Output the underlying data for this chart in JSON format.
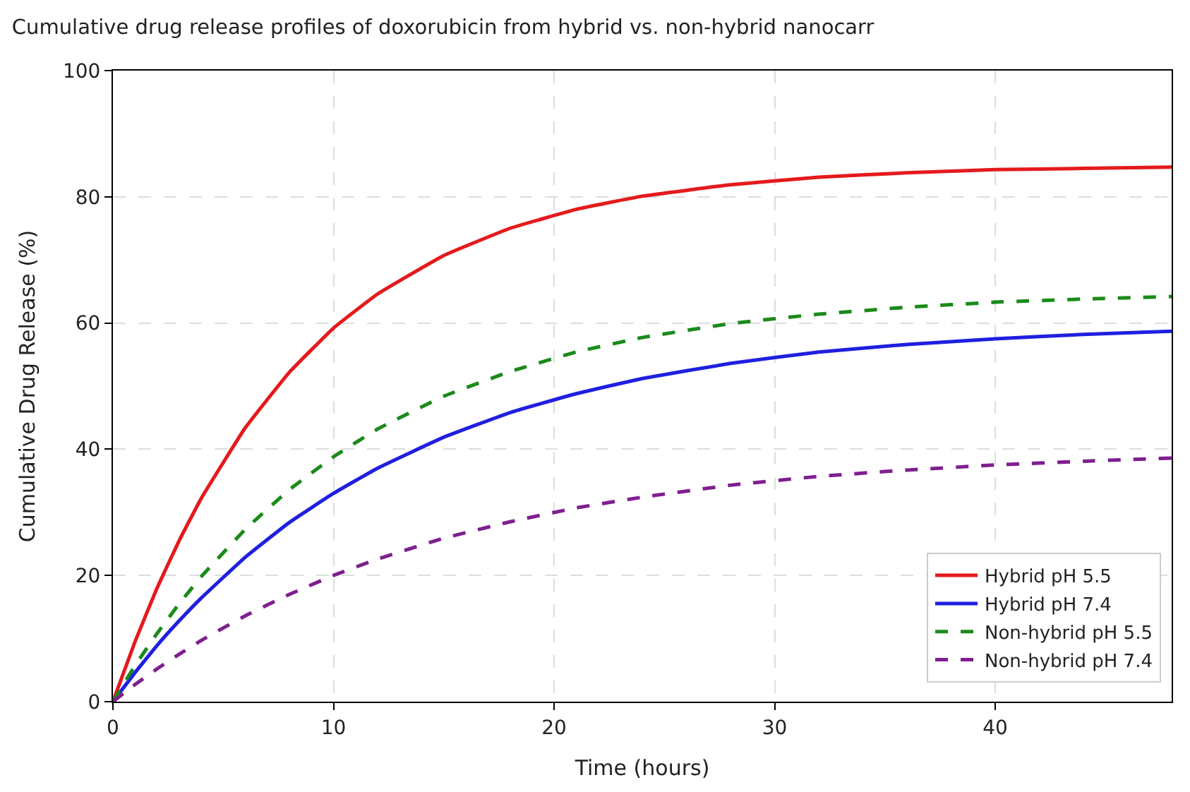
{
  "chart_data": {
    "type": "line",
    "title": "Cumulative drug release profiles of doxorubicin from hybrid vs. non-hybrid nanocarr",
    "xlabel": "Time (hours)",
    "ylabel": "Cumulative Drug Release (%)",
    "x": [
      0,
      1,
      2,
      3,
      4,
      6,
      8,
      10,
      12,
      15,
      18,
      21,
      24,
      28,
      32,
      36,
      40,
      44,
      48
    ],
    "xlim": [
      0,
      48
    ],
    "xticks": [
      0,
      10,
      20,
      30,
      40
    ],
    "ylim": [
      0,
      100
    ],
    "yticks": [
      0,
      20,
      40,
      60,
      80,
      100
    ],
    "grid": true,
    "legend": "bottom right",
    "marker": "none",
    "series": [
      {
        "name": "Hybrid pH 5.5",
        "color": "#e41a1c",
        "line_style": "solid",
        "values": [
          0,
          9.5,
          18.0,
          25.5,
          32.2,
          43.4,
          52.2,
          59.2,
          64.6,
          70.7,
          75.0,
          78.0,
          80.1,
          81.9,
          83.1,
          83.8,
          84.3,
          84.5,
          84.7
        ]
      },
      {
        "name": "Hybrid pH 7.4",
        "color": "#1f1fe0",
        "line_style": "solid",
        "values": [
          0,
          4.6,
          8.9,
          12.8,
          16.4,
          22.9,
          28.4,
          33.0,
          37.0,
          41.9,
          45.8,
          48.8,
          51.2,
          53.6,
          55.4,
          56.6,
          57.5,
          58.2,
          58.7
        ]
      },
      {
        "name": "Non-hybrid pH 5.5",
        "color": "#1a8a1a",
        "line_style": "dashed",
        "values": [
          0,
          5.7,
          10.8,
          15.5,
          19.8,
          27.3,
          33.6,
          38.8,
          43.2,
          48.4,
          52.3,
          55.4,
          57.7,
          59.9,
          61.4,
          62.5,
          63.3,
          63.8,
          64.2
        ]
      },
      {
        "name": "Non-hybrid pH 7.4",
        "color": "#7f1f8f",
        "line_style": "dashed",
        "values": [
          0,
          2.7,
          5.2,
          7.5,
          9.7,
          13.6,
          17.0,
          20.0,
          22.6,
          25.9,
          28.5,
          30.7,
          32.4,
          34.3,
          35.7,
          36.7,
          37.5,
          38.1,
          38.6
        ]
      }
    ]
  }
}
